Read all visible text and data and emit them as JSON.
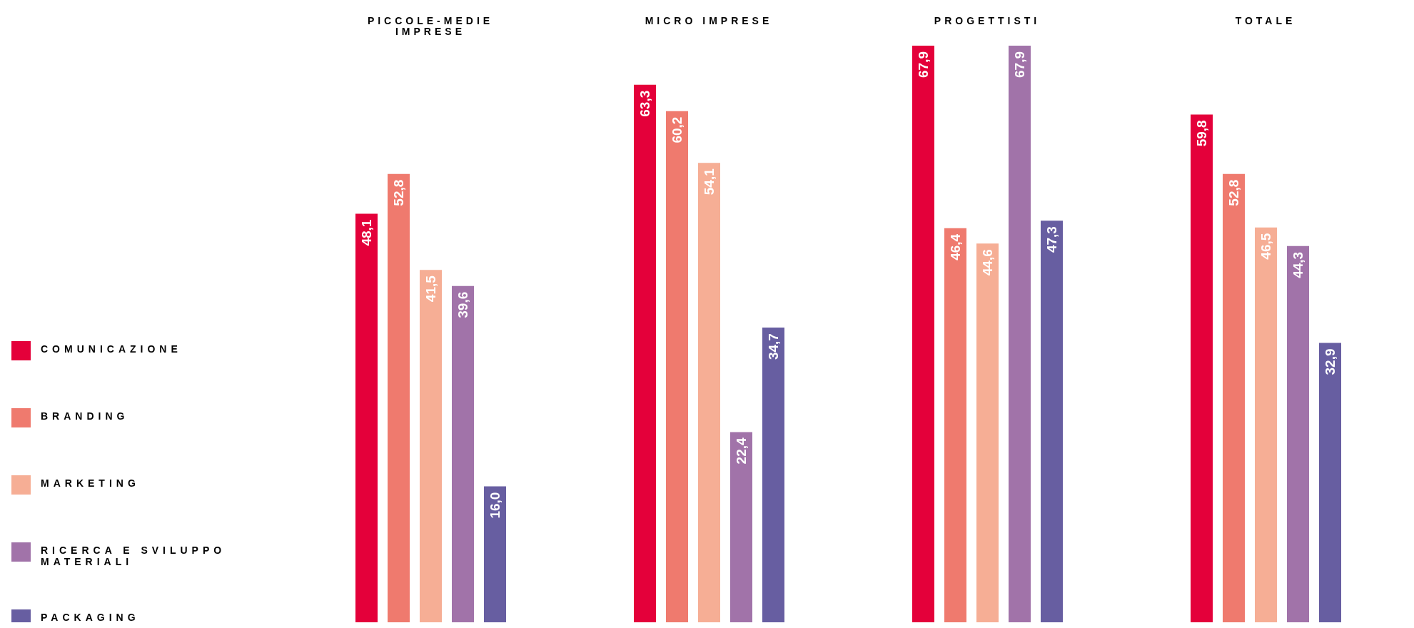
{
  "chart_data": {
    "type": "bar",
    "categories": [
      "PICCOLE-MEDIE IMPRESE",
      "MICRO IMPRESE",
      "PROGETTISTI",
      "TOTALE"
    ],
    "series": [
      {
        "name": "COMUNICAZIONE",
        "color": "#e4003a",
        "values": [
          48.1,
          63.3,
          67.9,
          59.8
        ],
        "value_labels": [
          "48,1",
          "63,3",
          "67,9",
          "59,8"
        ]
      },
      {
        "name": "BRANDING",
        "color": "#ef7a6e",
        "values": [
          52.8,
          60.2,
          46.4,
          52.8
        ],
        "value_labels": [
          "52,8",
          "60,2",
          "46,4",
          "52,8"
        ]
      },
      {
        "name": "MARKETING",
        "color": "#f6ae95",
        "values": [
          41.5,
          54.1,
          44.6,
          46.5
        ],
        "value_labels": [
          "41,5",
          "54,1",
          "44,6",
          "46,5"
        ]
      },
      {
        "name": "RICERCA E SVILUPPO MATERIALI",
        "color": "#a173a9",
        "values": [
          39.6,
          22.4,
          67.9,
          44.3
        ],
        "value_labels": [
          "39,6",
          "22,4",
          "67,9",
          "44,3"
        ]
      },
      {
        "name": "PACKAGING",
        "color": "#675ea1",
        "values": [
          16.0,
          34.7,
          47.3,
          32.9
        ],
        "value_labels": [
          "16,0",
          "34,7",
          "47,3",
          "32,9"
        ]
      }
    ],
    "legend": "left"
  }
}
